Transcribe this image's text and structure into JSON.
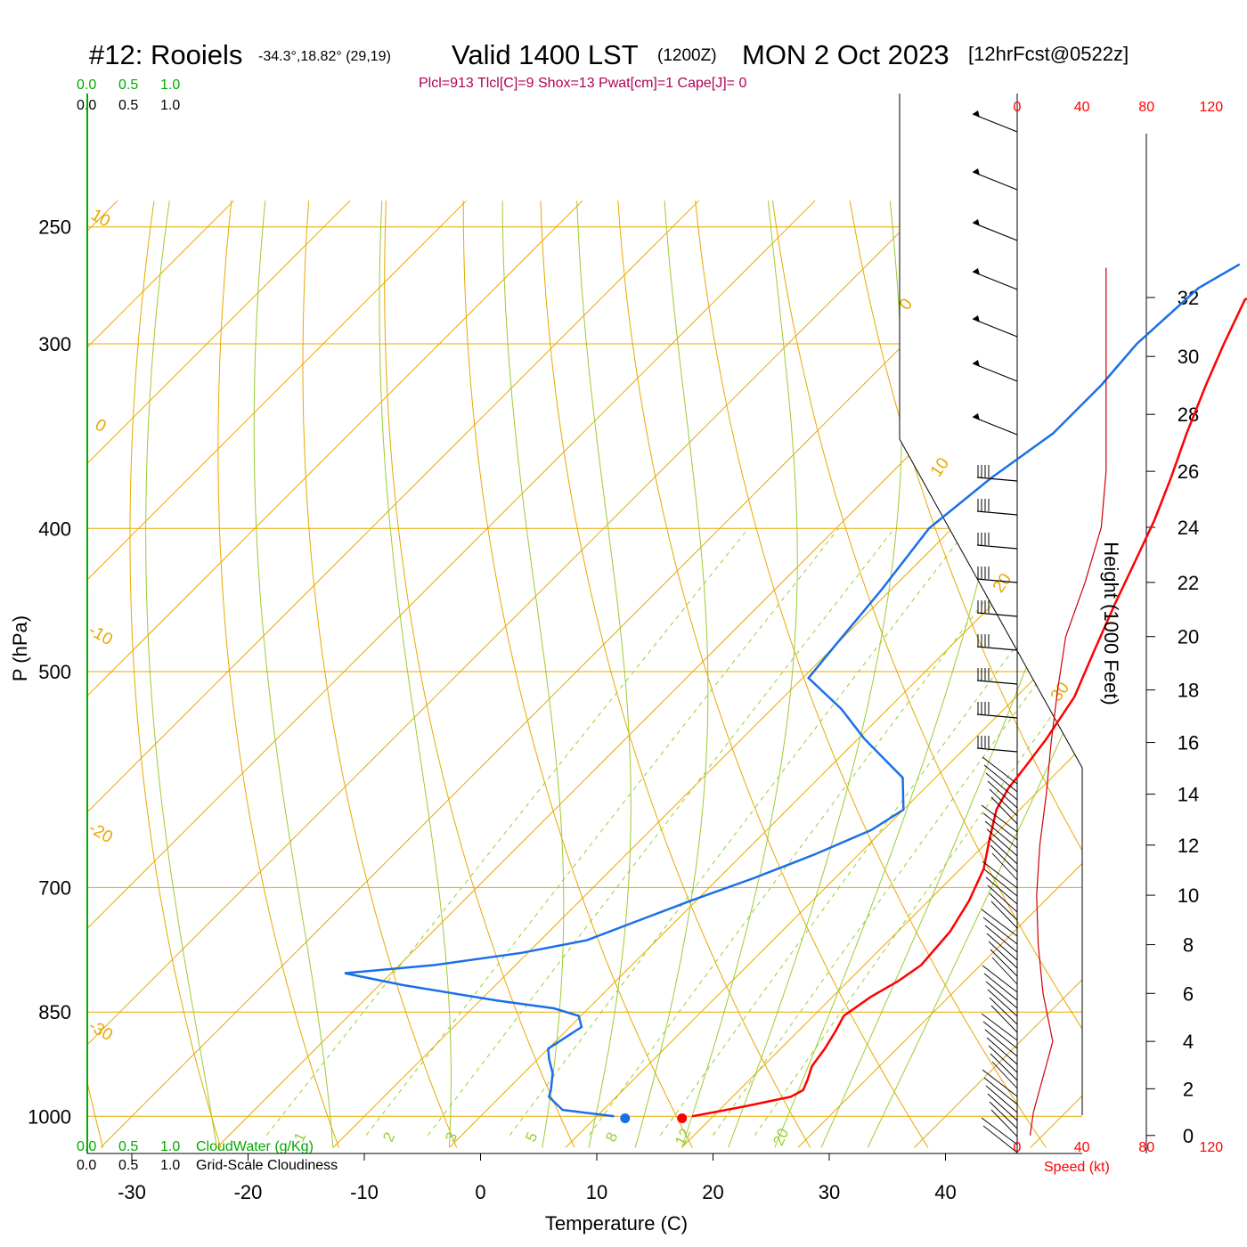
{
  "header": {
    "station": "#12: Rooiels",
    "coords": "-34.3°,18.82° (29,19)",
    "valid": "Valid 1400 LST",
    "zulu": "(1200Z)",
    "date": "MON 2 Oct 2023",
    "forecast": "[12hrFcst@0522z]",
    "stats": "Plcl=913 Tlcl[C]=9 Shox=13 Pwat[cm]=1 Cape[J]= 0"
  },
  "scales": {
    "top_green": [
      "0.0",
      "0.5",
      "1.0"
    ],
    "top_black": [
      "0.0",
      "0.5",
      "1.0"
    ],
    "bottom_green": [
      "0.0",
      "0.5",
      "1.0"
    ],
    "bottom_green_label": "CloudWater (g/Kg)",
    "bottom_black": [
      "0.0",
      "0.5",
      "1.0"
    ],
    "bottom_black_label": "Grid-Scale Cloudiness",
    "speed_ticks": [
      "0",
      "40",
      "80",
      "120"
    ],
    "speed_label": "Speed (kt)"
  },
  "colors": {
    "temperature": "#ff0000",
    "dewpoint": "#1a6fe8",
    "isobar": "#e8a800",
    "mixing_ratio": "#9bcc33",
    "cloud_water": "#00aa00",
    "stats": "#b0005a",
    "wind_speed": "#cc0000"
  },
  "chart_data": {
    "type": "line",
    "subtype": "skew-T log-P sounding",
    "xlabel": "Temperature (C)",
    "ylabel": "P (hPa)",
    "y2label": "Height (1000 Feet)",
    "xticks": [
      "-30",
      "-20",
      "-10",
      "0",
      "10",
      "20",
      "30",
      "40"
    ],
    "xlim": [
      -34,
      45
    ],
    "yticks": [
      "250",
      "300",
      "400",
      "500",
      "700",
      "850",
      "1000"
    ],
    "ylim": [
      1020,
      250
    ],
    "y_scale": "log",
    "height_ticks": [
      "0",
      "2",
      "4",
      "6",
      "8",
      "10",
      "12",
      "14",
      "16",
      "18",
      "20",
      "22",
      "24",
      "26",
      "28",
      "30",
      "32"
    ],
    "isotherm_labels": [
      "10",
      "0",
      "-10",
      "-20",
      "-30",
      "0",
      "10",
      "20",
      "30"
    ],
    "mixing_ratio_labels": [
      "1",
      "2",
      "3",
      "5",
      "8",
      "12",
      "20"
    ],
    "surface_temperature": 17.5,
    "surface_dewpoint": 12.6,
    "series": [
      {
        "name": "Temperature",
        "points": [
          [
            18.2,
            1000
          ],
          [
            21.8,
            985
          ],
          [
            25,
            970
          ],
          [
            25.5,
            960
          ],
          [
            25,
            945
          ],
          [
            24.2,
            925
          ],
          [
            23.8,
            900
          ],
          [
            23.2,
            875
          ],
          [
            22.6,
            855
          ],
          [
            23.3,
            830
          ],
          [
            24.3,
            810
          ],
          [
            24.9,
            790
          ],
          [
            24.5,
            750
          ],
          [
            23.5,
            715
          ],
          [
            22,
            680
          ],
          [
            20,
            650
          ],
          [
            18,
            620
          ],
          [
            17.2,
            600
          ],
          [
            16.8,
            580
          ],
          [
            16.2,
            555
          ],
          [
            15,
            520
          ],
          [
            12.8,
            485
          ],
          [
            10.5,
            450
          ],
          [
            8.5,
            420
          ],
          [
            6.7,
            395
          ],
          [
            4.5,
            370
          ],
          [
            2,
            345
          ],
          [
            -0.5,
            320
          ],
          [
            -2.5,
            300
          ],
          [
            -4.5,
            280
          ],
          [
            0.2,
            265
          ]
        ]
      },
      {
        "name": "Dewpoint",
        "points": [
          [
            11.5,
            1000
          ],
          [
            6.5,
            990
          ],
          [
            4.2,
            970
          ],
          [
            3.8,
            960
          ],
          [
            2.5,
            935
          ],
          [
            1,
            915
          ],
          [
            0,
            900
          ],
          [
            0.5,
            885
          ],
          [
            1,
            870
          ],
          [
            -0.2,
            855
          ],
          [
            -3,
            845
          ],
          [
            -8.5,
            835
          ],
          [
            -18,
            815
          ],
          [
            -24,
            800
          ],
          [
            -17,
            790
          ],
          [
            -10.5,
            775
          ],
          [
            -6,
            760
          ],
          [
            -3,
            735
          ],
          [
            -0.5,
            715
          ],
          [
            3,
            690
          ],
          [
            6.2,
            665
          ],
          [
            9,
            640
          ],
          [
            10,
            620
          ],
          [
            7.2,
            590
          ],
          [
            0.5,
            555
          ],
          [
            -4,
            530
          ],
          [
            -9.5,
            505
          ],
          [
            -10,
            480
          ],
          [
            -10.8,
            440
          ],
          [
            -12,
            400
          ],
          [
            -11,
            370
          ],
          [
            -9.5,
            345
          ],
          [
            -9.5,
            320
          ],
          [
            -10,
            300
          ],
          [
            -9.5,
            275
          ],
          [
            -8,
            265
          ]
        ]
      }
    ],
    "wind_speed_profile": [
      [
        8,
        0
      ],
      [
        10,
        1
      ],
      [
        14,
        2
      ],
      [
        18,
        3
      ],
      [
        22,
        4
      ],
      [
        16,
        6
      ],
      [
        13,
        8
      ],
      [
        12,
        10
      ],
      [
        14,
        12
      ],
      [
        18,
        14
      ],
      [
        21,
        16
      ],
      [
        25,
        18
      ],
      [
        30,
        20
      ],
      [
        42,
        22
      ],
      [
        52,
        24
      ],
      [
        55,
        26
      ],
      [
        55,
        30
      ],
      [
        55,
        33
      ]
    ]
  }
}
